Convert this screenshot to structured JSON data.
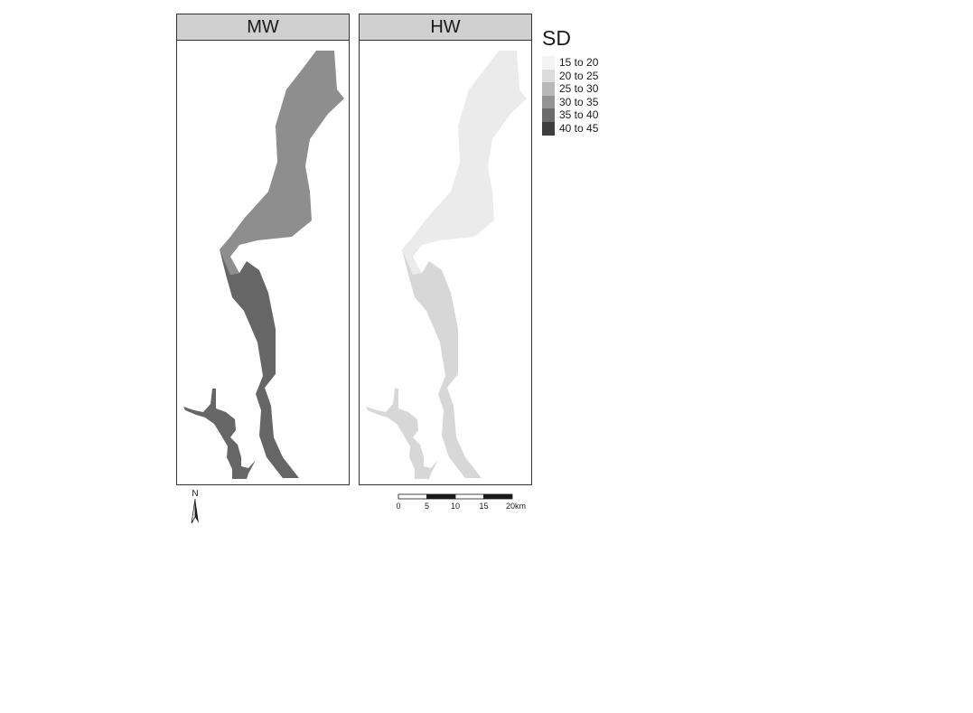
{
  "panels": [
    {
      "title": "MW",
      "upper_fill": "#8e8e8e",
      "lower_fill": "#666666"
    },
    {
      "title": "HW",
      "upper_fill": "#ebebeb",
      "lower_fill": "#d7d7d7"
    }
  ],
  "legend": {
    "title": "SD",
    "items": [
      {
        "label": "15 to 20",
        "color": "#f3f3f3"
      },
      {
        "label": "20 to 25",
        "color": "#dcdcdc"
      },
      {
        "label": "25 to 30",
        "color": "#b8b8b8"
      },
      {
        "label": "30 to 35",
        "color": "#939393"
      },
      {
        "label": "35 to 40",
        "color": "#6b6b6b"
      },
      {
        "label": "40 to 45",
        "color": "#3e3e3e"
      }
    ]
  },
  "north_arrow": {
    "label": "N"
  },
  "scale_bar": {
    "ticks": [
      "0",
      "5",
      "10",
      "15",
      "20km"
    ]
  }
}
